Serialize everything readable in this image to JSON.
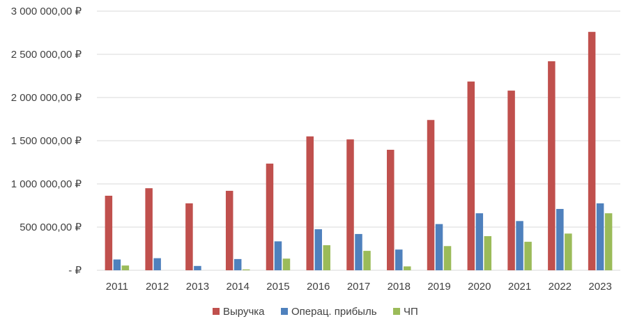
{
  "chart_data": {
    "type": "bar",
    "categories": [
      "2011",
      "2012",
      "2013",
      "2014",
      "2015",
      "2016",
      "2017",
      "2018",
      "2019",
      "2020",
      "2021",
      "2022",
      "2023"
    ],
    "series": [
      {
        "name": "Выручка",
        "color": "#C0504D",
        "values": [
          863000,
          950000,
          775000,
          920000,
          1235000,
          1550000,
          1515000,
          1395000,
          1740000,
          2185000,
          2080000,
          2420000,
          2760000
        ]
      },
      {
        "name": "Операц. прибыль",
        "color": "#4F81BD",
        "values": [
          125000,
          140000,
          50000,
          130000,
          335000,
          475000,
          420000,
          240000,
          535000,
          660000,
          570000,
          710000,
          775000
        ]
      },
      {
        "name": "ЧП",
        "color": "#9BBB59",
        "values": [
          55000,
          0,
          0,
          10000,
          135000,
          290000,
          225000,
          45000,
          280000,
          395000,
          330000,
          425000,
          660000
        ]
      }
    ],
    "yticks": [
      {
        "value": 0,
        "label": " -  ₽"
      },
      {
        "value": 500000,
        "label": "500 000,00 ₽"
      },
      {
        "value": 1000000,
        "label": "1 000 000,00 ₽"
      },
      {
        "value": 1500000,
        "label": "1 500 000,00 ₽"
      },
      {
        "value": 2000000,
        "label": "2 000 000,00 ₽"
      },
      {
        "value": 2500000,
        "label": "2 500 000,00 ₽"
      },
      {
        "value": 3000000,
        "label": "3 000 000,00 ₽"
      }
    ],
    "ylim": [
      0,
      3000000
    ],
    "grid": true,
    "legend_position": "bottom-center",
    "title": "",
    "xlabel": "",
    "ylabel": ""
  }
}
